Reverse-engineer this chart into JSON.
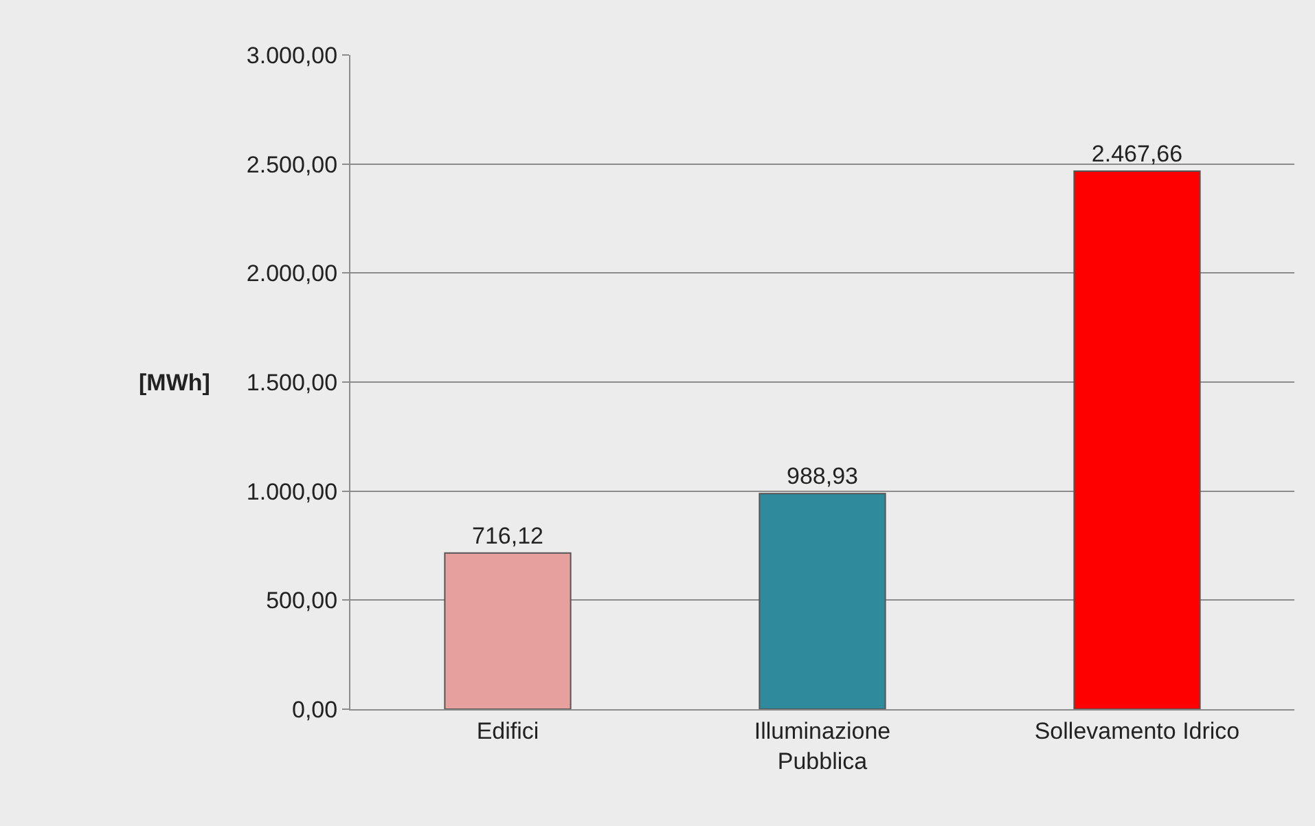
{
  "chart_data": {
    "type": "bar",
    "ylabel": "[MWh]",
    "categories": [
      "Edifici",
      "Illuminazione\nPubblica",
      "Sollevamento Idrico"
    ],
    "values": [
      716.12,
      988.93,
      2467.66
    ],
    "colors": [
      "#e6a19e",
      "#2f8a9c",
      "#ff0000"
    ],
    "value_labels": [
      "716,12",
      "988,93",
      "2.467,66"
    ],
    "ylim": [
      0,
      3000
    ],
    "yticks": [
      {
        "value": 0,
        "label": "0,00"
      },
      {
        "value": 500,
        "label": "500,00"
      },
      {
        "value": 1000,
        "label": "1.000,00"
      },
      {
        "value": 1500,
        "label": "1.500,00"
      },
      {
        "value": 2000,
        "label": "2.000,00"
      },
      {
        "value": 2500,
        "label": "2.500,00"
      },
      {
        "value": 3000,
        "label": "3.000,00"
      }
    ],
    "grid": "y",
    "legend": false
  }
}
